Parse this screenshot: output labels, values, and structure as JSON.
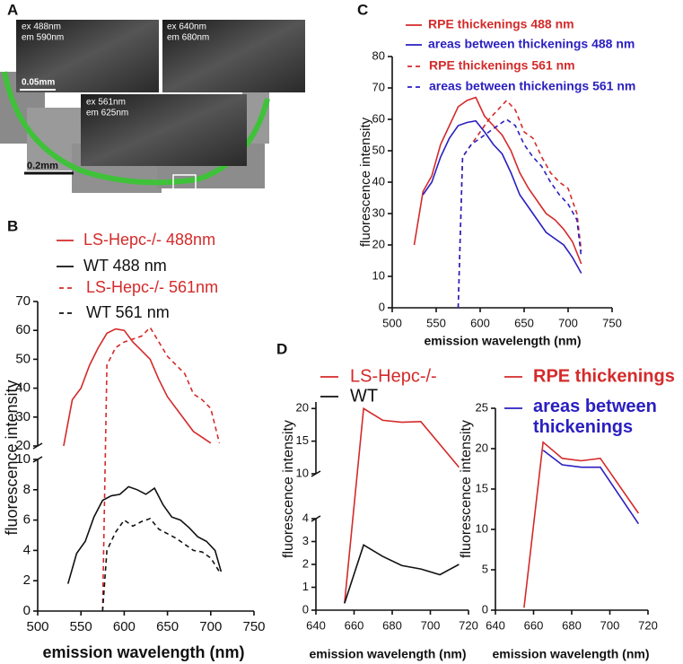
{
  "image_panel": {
    "label": "A",
    "insets": [
      [
        "ex 488nm",
        "em 590nm"
      ],
      [
        "ex 640nm",
        "em 680nm"
      ],
      [
        "ex 561nm",
        "em 625nm"
      ]
    ],
    "scale_bars": [
      "0.05mm",
      "0.2mm"
    ]
  },
  "chart_data": [
    {
      "panel": "B",
      "type": "line",
      "xlabel": "emission wavelength (nm)",
      "ylabel": "fluorescence intensity",
      "xlim": [
        500,
        750
      ],
      "xticks": [
        500,
        550,
        600,
        650,
        700,
        750
      ],
      "ylim": [
        0,
        70
      ],
      "y_break": [
        10,
        20
      ],
      "yticks": [
        0,
        2,
        4,
        6,
        8,
        10,
        20,
        30,
        40,
        50,
        60,
        70
      ],
      "series": [
        {
          "name": "LS-Hepc-/- 488nm",
          "color": "#d42a2a",
          "dashed": false,
          "x": [
            530,
            540,
            550,
            560,
            570,
            580,
            590,
            600,
            610,
            620,
            630,
            640,
            650,
            660,
            670,
            680,
            690,
            700
          ],
          "values": [
            20,
            36,
            40,
            48,
            54,
            59,
            60.5,
            60,
            56,
            53,
            50,
            43,
            37,
            33,
            29,
            25,
            23,
            21
          ]
        },
        {
          "name": "WT 488 nm",
          "color": "#111111",
          "dashed": false,
          "x": [
            535,
            545,
            555,
            565,
            575,
            585,
            595,
            605,
            615,
            625,
            635,
            645,
            655,
            665,
            675,
            685,
            695,
            705,
            712
          ],
          "values": [
            1.8,
            3.8,
            4.6,
            6.2,
            7.3,
            7.6,
            7.7,
            8.2,
            8.0,
            7.7,
            8.1,
            7.0,
            6.2,
            6.0,
            5.5,
            4.9,
            4.6,
            4.0,
            2.6
          ]
        },
        {
          "name": "LS-Hepc-/- 561nm",
          "color": "#d42a2a",
          "dashed": true,
          "x": [
            575,
            580,
            590,
            600,
            610,
            620,
            630,
            640,
            650,
            660,
            670,
            680,
            690,
            700,
            710
          ],
          "values": [
            0,
            48,
            54,
            56,
            57,
            58,
            61,
            56,
            51,
            48,
            45,
            38,
            36,
            33,
            21
          ]
        },
        {
          "name": "WT 561 nm",
          "color": "#111111",
          "dashed": true,
          "x": [
            575,
            580,
            590,
            600,
            610,
            620,
            630,
            640,
            650,
            660,
            670,
            680,
            690,
            700,
            710
          ],
          "values": [
            0,
            4.0,
            5.2,
            6.0,
            5.6,
            5.9,
            6.1,
            5.4,
            5.1,
            4.8,
            4.4,
            4.0,
            3.9,
            3.5,
            2.6
          ]
        }
      ]
    },
    {
      "panel": "C",
      "type": "line",
      "xlabel": "emission wavelength (nm)",
      "ylabel": "fluorescence intensity",
      "xlim": [
        500,
        750
      ],
      "xticks": [
        500,
        550,
        600,
        650,
        700,
        750
      ],
      "ylim": [
        0,
        80
      ],
      "yticks": [
        0,
        10,
        20,
        30,
        40,
        50,
        60,
        70,
        80
      ],
      "series": [
        {
          "name": "RPE thickenings 488 nm",
          "color": "#d42a2a",
          "dashed": false,
          "x": [
            525,
            535,
            545,
            555,
            565,
            575,
            585,
            595,
            605,
            615,
            625,
            635,
            645,
            655,
            665,
            675,
            685,
            695,
            705,
            715
          ],
          "values": [
            20,
            37,
            42,
            52,
            58,
            64,
            66,
            67,
            61,
            58,
            55,
            50,
            43,
            38,
            34,
            30,
            28,
            25,
            21,
            14
          ]
        },
        {
          "name": "areas between thickenings  488 nm",
          "color": "#2a1fc0",
          "dashed": false,
          "x": [
            535,
            545,
            555,
            565,
            575,
            585,
            595,
            605,
            615,
            625,
            635,
            645,
            655,
            665,
            675,
            685,
            695,
            705,
            715
          ],
          "values": [
            36,
            40,
            48,
            54,
            58,
            59,
            59.5,
            56,
            52,
            49,
            43,
            36,
            32,
            28,
            24,
            22,
            20,
            16,
            11
          ]
        },
        {
          "name": "RPE thickenings 561 nm",
          "color": "#d42a2a",
          "dashed": true,
          "x": [
            575,
            580,
            590,
            600,
            610,
            620,
            630,
            640,
            650,
            660,
            670,
            680,
            690,
            700,
            710,
            715
          ],
          "values": [
            0,
            48,
            52,
            56,
            60,
            63,
            66,
            63,
            56,
            54,
            48,
            43,
            40,
            38,
            30,
            18
          ]
        },
        {
          "name": "areas between thickenings 561 nm",
          "color": "#2a1fc0",
          "dashed": true,
          "x": [
            575,
            580,
            590,
            600,
            610,
            620,
            630,
            640,
            650,
            660,
            670,
            680,
            690,
            700,
            710,
            715
          ],
          "values": [
            0,
            48,
            52,
            54,
            56,
            58,
            60,
            58,
            52,
            48,
            45,
            40,
            36,
            33,
            28,
            16
          ]
        }
      ]
    },
    {
      "panel": "D",
      "type": "line",
      "xlabel": "emission wavelength (nm)",
      "ylabel": "fluorescence intensity",
      "xlim": [
        640,
        720
      ],
      "xticks": [
        640,
        660,
        680,
        700,
        720
      ],
      "ylim": [
        0,
        21
      ],
      "y_break": [
        4,
        10
      ],
      "yticks": [
        0,
        1,
        2,
        3,
        4,
        10,
        15,
        20
      ],
      "series": [
        {
          "name": "LS-Hepc-/-",
          "color": "#d42a2a",
          "dashed": false,
          "x": [
            655,
            665,
            675,
            685,
            695,
            715
          ],
          "values": [
            0.3,
            20,
            18.2,
            17.9,
            18,
            11
          ]
        },
        {
          "name": "WT",
          "color": "#111111",
          "dashed": false,
          "x": [
            655,
            665,
            675,
            685,
            695,
            705,
            715
          ],
          "values": [
            0.3,
            2.85,
            2.35,
            1.95,
            1.8,
            1.55,
            2.0
          ]
        }
      ]
    },
    {
      "type": "line",
      "xlabel": "emission wavelength (nm)",
      "ylabel": "fluorescence intensity",
      "xlim": [
        640,
        720
      ],
      "xticks": [
        640,
        660,
        680,
        700,
        720
      ],
      "ylim": [
        0,
        25
      ],
      "yticks": [
        0,
        5,
        10,
        15,
        20,
        25
      ],
      "series": [
        {
          "name": "RPE thickenings",
          "color": "#d42a2a",
          "dashed": false,
          "x": [
            655,
            665,
            675,
            685,
            695,
            715
          ],
          "values": [
            0.3,
            20.8,
            18.8,
            18.5,
            18.8,
            12
          ]
        },
        {
          "name": "areas between thickenings",
          "color": "#2a1fc0",
          "dashed": false,
          "x": [
            665,
            675,
            685,
            695,
            715
          ],
          "values": [
            19.8,
            18,
            17.7,
            17.7,
            10.7
          ]
        }
      ]
    }
  ]
}
